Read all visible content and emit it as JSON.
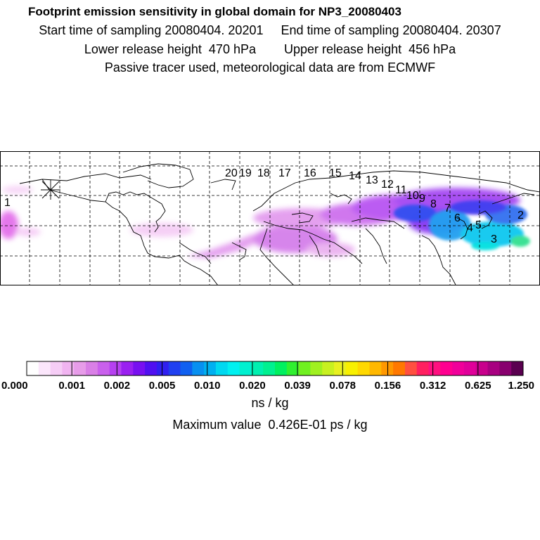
{
  "header": {
    "title": "Footprint emission sensitivity in global domain for NP3_20080403",
    "line1": "Start time of sampling 20080404. 20201     End time of sampling 20080404. 20307",
    "line2": "Lower release height  470 hPa        Upper release height  456 hPa",
    "line3": "Passive tracer used, meteorological data are from ECMWF"
  },
  "map": {
    "grid": "dashed",
    "trajectory_labels": [
      "1",
      "2",
      "3",
      "4",
      "5",
      "6",
      "7",
      "8",
      "9",
      "10",
      "11",
      "12",
      "13",
      "14",
      "15",
      "16",
      "17",
      "18",
      "19",
      "20"
    ]
  },
  "colorbar": {
    "colors": [
      "#ffffff",
      "#fbe6fb",
      "#f6cdf6",
      "#f1b4f1",
      "#e79ce9",
      "#d97fe6",
      "#c960ec",
      "#b640f0",
      "#9a20f0",
      "#7810f0",
      "#5010f0",
      "#3020f0",
      "#2040f0",
      "#1060f0",
      "#0890f0",
      "#00b0f0",
      "#00d8f0",
      "#00f0f0",
      "#00f0d0",
      "#00f0b0",
      "#00f090",
      "#00f060",
      "#30f030",
      "#70f020",
      "#a0f020",
      "#c8f020",
      "#e8f020",
      "#f8f000",
      "#ffd800",
      "#ffb800",
      "#ff9800",
      "#ff7800",
      "#ff5040",
      "#ff2060",
      "#ff1080",
      "#ff0090",
      "#f0009a",
      "#e0009a",
      "#c8008c",
      "#a80080",
      "#88006e",
      "#5a0050"
    ],
    "tick_labels": [
      "0.000",
      "0.001",
      "0.002",
      "0.005",
      "0.010",
      "0.020",
      "0.039",
      "0.078",
      "0.156",
      "0.312",
      "0.625",
      "1.250"
    ],
    "unit": "ns / kg"
  },
  "max_value": "Maximum value  0.426E-01 ps / kg"
}
